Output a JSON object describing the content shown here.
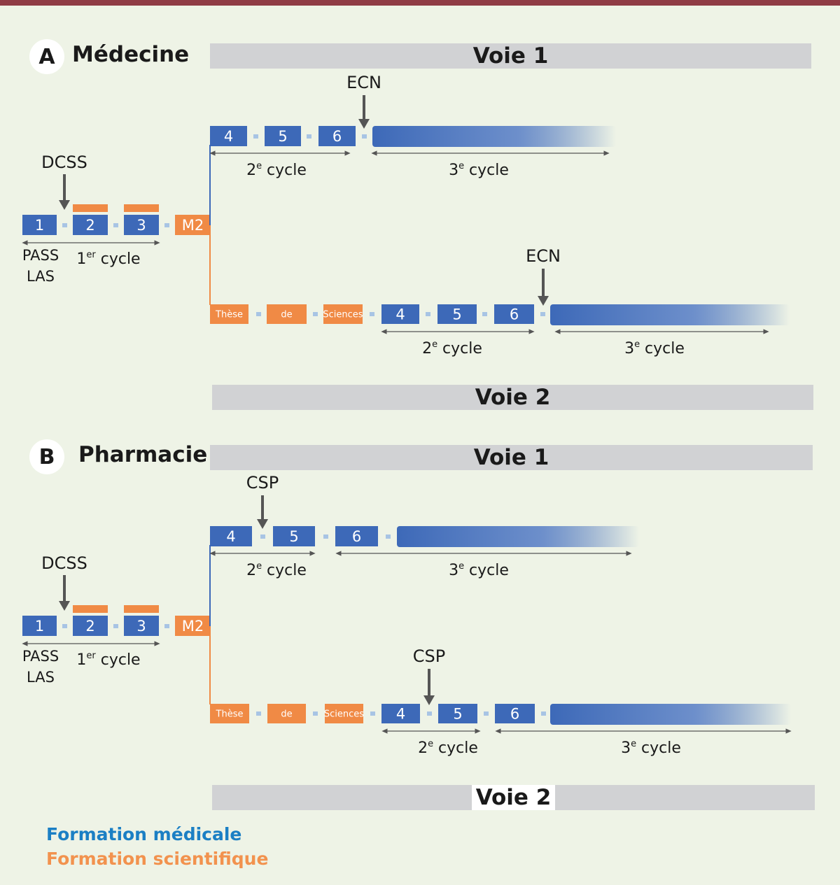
{
  "sections": [
    {
      "letter": "A",
      "title": "Médecine",
      "voie1": "Voie 1",
      "voie2": "Voie 2",
      "first_cycle": {
        "exam": "DCSS",
        "years": [
          "1",
          "2",
          "3"
        ],
        "m2": "M2",
        "entry": [
          "PASS",
          "LAS"
        ],
        "cycle_label": {
          "num": "1",
          "sup": "er",
          "word": "cycle"
        }
      },
      "voie1_path": {
        "years": [
          "4",
          "5",
          "6"
        ],
        "exam": "ECN",
        "cycle2": {
          "num": "2",
          "sup": "e",
          "word": "cycle"
        },
        "cycle3": {
          "num": "3",
          "sup": "e",
          "word": "cycle"
        }
      },
      "voie2_path": {
        "these": [
          "Thèse",
          "de",
          "Sciences"
        ],
        "years": [
          "4",
          "5",
          "6"
        ],
        "exam": "ECN",
        "cycle2": {
          "num": "2",
          "sup": "e",
          "word": "cycle"
        },
        "cycle3": {
          "num": "3",
          "sup": "e",
          "word": "cycle"
        }
      }
    },
    {
      "letter": "B",
      "title": "Pharmacie",
      "voie1": "Voie 1",
      "voie2": "Voie 2",
      "first_cycle": {
        "exam": "DCSS",
        "years": [
          "1",
          "2",
          "3"
        ],
        "m2": "M2",
        "entry": [
          "PASS",
          "LAS"
        ],
        "cycle_label": {
          "num": "1",
          "sup": "er",
          "word": "cycle"
        }
      },
      "voie1_path": {
        "years": [
          "4",
          "5",
          "6"
        ],
        "exam": "CSP",
        "cycle2": {
          "num": "2",
          "sup": "e",
          "word": "cycle"
        },
        "cycle3": {
          "num": "3",
          "sup": "e",
          "word": "cycle"
        }
      },
      "voie2_path": {
        "these": [
          "Thèse",
          "de",
          "Sciences"
        ],
        "years": [
          "4",
          "5",
          "6"
        ],
        "exam": "CSP",
        "cycle2": {
          "num": "2",
          "sup": "e",
          "word": "cycle"
        },
        "cycle3": {
          "num": "3",
          "sup": "e",
          "word": "cycle"
        }
      }
    }
  ],
  "legend": {
    "medical": "Formation médicale",
    "scientific": "Formation scientifique"
  },
  "colors": {
    "medical": "#3d69b8",
    "scientific": "#f08a45",
    "connector": "#a8c4e4",
    "arrow": "#555555",
    "band": "#d1d2d4",
    "background": "#eef3e6",
    "rule": "#8f3c45"
  }
}
